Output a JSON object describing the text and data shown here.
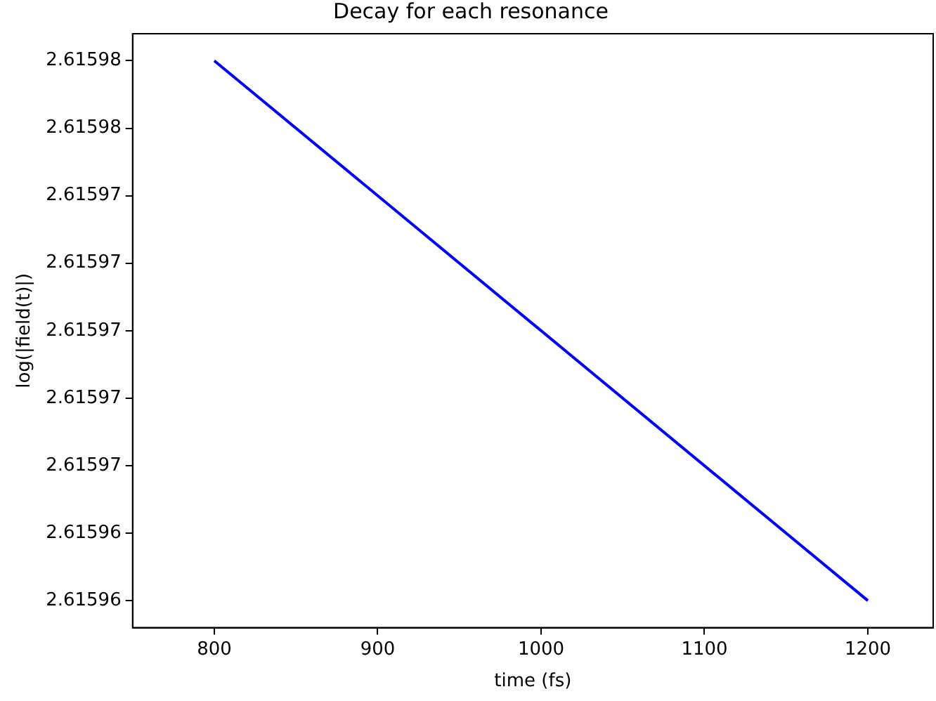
{
  "chart_data": {
    "type": "line",
    "title": "Decay for each resonance",
    "xlabel": "time (fs)",
    "ylabel": "log(|field(t)|)",
    "x": [
      800,
      1200
    ],
    "series": [
      {
        "color": "#0000ff",
        "values": [
          2.615978,
          2.615962
        ]
      }
    ],
    "xlim": [
      750,
      1240
    ],
    "xticks": [
      800,
      900,
      1000,
      1100,
      1200
    ],
    "ylim": [
      2.6159612,
      2.6159788
    ],
    "yticks": [
      {
        "value": 2.615978,
        "label": "2.61598"
      },
      {
        "value": 2.615976,
        "label": "2.61598"
      },
      {
        "value": 2.615974,
        "label": "2.61597"
      },
      {
        "value": 2.615972,
        "label": "2.61597"
      },
      {
        "value": 2.61597,
        "label": "2.61597"
      },
      {
        "value": 2.615968,
        "label": "2.61597"
      },
      {
        "value": 2.615966,
        "label": "2.61597"
      },
      {
        "value": 2.615964,
        "label": "2.61596"
      },
      {
        "value": 2.615962,
        "label": "2.61596"
      }
    ],
    "grid": false,
    "legend": false,
    "marker": "none",
    "line_style": "solid"
  }
}
